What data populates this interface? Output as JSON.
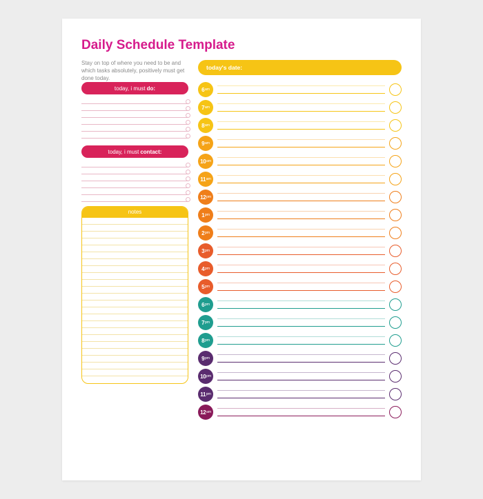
{
  "title": "Daily Schedule Template",
  "title_color": "#d61b8c",
  "intro": "Stay on top of where you need to be and which tasks absolutely, positively must get done today.",
  "intro_color": "#8a8a8a",
  "date_pill": {
    "label": "today's date:",
    "bg": "#f6c415"
  },
  "sections": {
    "do": {
      "prefix": "today, i must ",
      "bold": "do:",
      "bg": "#d8235a",
      "line_color": "#e9b7c6",
      "lines": 6
    },
    "contact": {
      "prefix": "today, i must ",
      "bold": "contact:",
      "bg": "#d8235a",
      "line_color": "#e9b7c6",
      "lines": 6
    }
  },
  "notes": {
    "label": "notes",
    "border": "#f6c415",
    "header_bg": "#f6c415",
    "line_color": "#f3e3a8",
    "lines": 24
  },
  "hours": [
    {
      "num": "6",
      "ampm": "am",
      "color": "#f6c415"
    },
    {
      "num": "7",
      "ampm": "am",
      "color": "#f6c415"
    },
    {
      "num": "8",
      "ampm": "am",
      "color": "#f6c415"
    },
    {
      "num": "9",
      "ampm": "am",
      "color": "#f5a317"
    },
    {
      "num": "10",
      "ampm": "am",
      "color": "#f5a317"
    },
    {
      "num": "11",
      "ampm": "am",
      "color": "#f5a317"
    },
    {
      "num": "12",
      "ampm": "pm",
      "color": "#ef7e1a"
    },
    {
      "num": "1",
      "ampm": "pm",
      "color": "#ef7e1a"
    },
    {
      "num": "2",
      "ampm": "pm",
      "color": "#ef7e1a"
    },
    {
      "num": "3",
      "ampm": "pm",
      "color": "#e85c2b"
    },
    {
      "num": "4",
      "ampm": "pm",
      "color": "#e85c2b"
    },
    {
      "num": "5",
      "ampm": "pm",
      "color": "#e85c2b"
    },
    {
      "num": "6",
      "ampm": "pm",
      "color": "#1f9d8f"
    },
    {
      "num": "7",
      "ampm": "pm",
      "color": "#1f9d8f"
    },
    {
      "num": "8",
      "ampm": "pm",
      "color": "#1f9d8f"
    },
    {
      "num": "9",
      "ampm": "pm",
      "color": "#5a2c6f"
    },
    {
      "num": "10",
      "ampm": "pm",
      "color": "#5a2c6f"
    },
    {
      "num": "11",
      "ampm": "pm",
      "color": "#5a2c6f"
    },
    {
      "num": "12",
      "ampm": "am",
      "color": "#8a1a5a"
    }
  ]
}
